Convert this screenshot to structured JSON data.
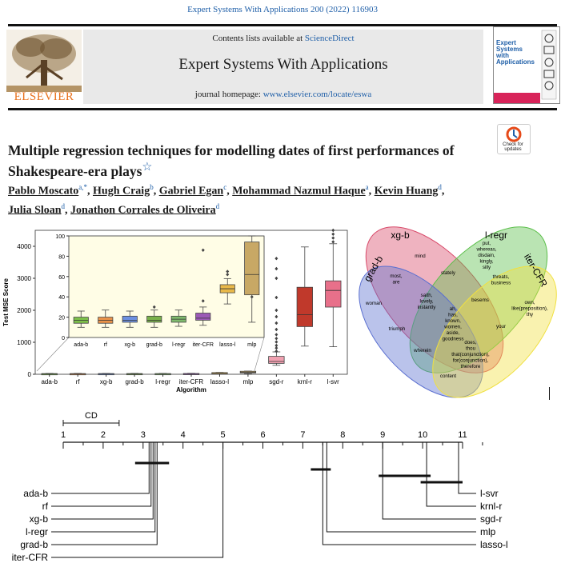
{
  "header": {
    "citation": "Expert Systems With Applications 200 (2022) 116903",
    "contents_prefix": "Contents lists available at",
    "contents_link": "ScienceDirect",
    "journal_title": "Expert Systems With Applications",
    "homepage_prefix": "journal homepage:",
    "homepage_link": "www.elsevier.com/locate/eswa",
    "publisher": "ELSEVIER",
    "cover_title_lines": [
      "Expert",
      "Systems",
      "with",
      "Applications"
    ],
    "check_updates_label": "Check for updates"
  },
  "article": {
    "title": "Multiple regression techniques for modelling dates of first performances of Shakespeare-era plays",
    "title_mark": "☆",
    "authors": [
      {
        "name": "Pablo Moscato",
        "aff": "a,*"
      },
      {
        "name": "Hugh Craig",
        "aff": "b"
      },
      {
        "name": "Gabriel Egan",
        "aff": "c"
      },
      {
        "name": "Mohammad Nazmul Haque",
        "aff": "a"
      },
      {
        "name": "Kevin Huang",
        "aff": "d"
      },
      {
        "name": "Julia Sloan",
        "aff": "d"
      },
      {
        "name": "Jonathon Corrales de Oliveira",
        "aff": "d"
      }
    ]
  },
  "chart_data": [
    {
      "type": "box",
      "xlabel": "Algorithm",
      "ylabel": "Test MSE Score",
      "ylim": [
        0,
        4500
      ],
      "yticks": [
        0,
        1000,
        2000,
        3000,
        4000
      ],
      "categories": [
        "ada-b",
        "rf",
        "xg-b",
        "grad-b",
        "l-regr",
        "iter-CFR",
        "lasso-l",
        "mlp",
        "sgd-r",
        "krnl-r",
        "l-svr"
      ],
      "colors": [
        "#7dbf4a",
        "#e8924a",
        "#6c8fe0",
        "#79b04b",
        "#7fba6d",
        "#9b59b6",
        "#e8b84a",
        "#c8a865",
        "#f0a0b0",
        "#c0392b",
        "#e8708a"
      ],
      "boxes": [
        {
          "min": 10,
          "q1": 14,
          "median": 17,
          "q3": 20,
          "max": 26
        },
        {
          "min": 10,
          "q1": 14,
          "median": 17,
          "q3": 20,
          "max": 27
        },
        {
          "min": 10,
          "q1": 15,
          "median": 17,
          "q3": 21,
          "max": 26
        },
        {
          "min": 10,
          "q1": 15,
          "median": 17,
          "q3": 21,
          "max": 27
        },
        {
          "min": 11,
          "q1": 15,
          "median": 18,
          "q3": 21,
          "max": 27
        },
        {
          "min": 12,
          "q1": 17,
          "median": 19,
          "q3": 24,
          "max": 30
        },
        {
          "min": 33,
          "q1": 44,
          "median": 48,
          "q3": 52,
          "max": 58
        },
        {
          "min": 15,
          "q1": 42,
          "median": 62,
          "q3": 94,
          "max": 100
        },
        {
          "min": 280,
          "q1": 340,
          "median": 400,
          "q3": 560,
          "max": 700
        },
        {
          "min": 880,
          "q1": 1490,
          "median": 1860,
          "q3": 2720,
          "max": 3980
        },
        {
          "min": 860,
          "q1": 2100,
          "median": 2620,
          "q3": 2920,
          "max": 4080
        }
      ],
      "inset": {
        "ylim": [
          0,
          100
        ],
        "yticks": [
          0,
          20,
          40,
          60,
          80,
          100
        ],
        "categories": [
          "ada-b",
          "rf",
          "xg-b",
          "grad-b",
          "l-regr",
          "iter-CFR",
          "lasso-l",
          "mlp"
        ]
      }
    },
    {
      "type": "venn",
      "sets": [
        "xg-b",
        "l-regr",
        "grad-b",
        "iter-CFR"
      ],
      "regions": [
        {
          "words": [
            "mind"
          ]
        },
        {
          "words": [
            "put,",
            "whereas,",
            "disdain,",
            "kingly,",
            "silly"
          ]
        },
        {
          "words": [
            "most,",
            "are"
          ]
        },
        {
          "words": [
            "stately"
          ]
        },
        {
          "words": [
            "threats,",
            "business"
          ]
        },
        {
          "words": [
            "woman"
          ]
        },
        {
          "words": [
            "saith,",
            "lovely,",
            "instantly"
          ]
        },
        {
          "words": [
            "besems"
          ]
        },
        {
          "words": [
            "own,",
            "like(preposition),",
            "thy"
          ]
        },
        {
          "words": [
            "ah,",
            "has,",
            "known,",
            "women,",
            "aside,",
            "goodness"
          ]
        },
        {
          "words": [
            "triumph"
          ]
        },
        {
          "words": [
            "your"
          ]
        },
        {
          "words": [
            "does,",
            "thou",
            "that(conjunction),",
            "for(conjunction),",
            "therefore"
          ]
        },
        {
          "words": [
            "wherein"
          ]
        },
        {
          "words": [
            "content"
          ]
        }
      ]
    },
    {
      "type": "critical-difference",
      "cd_label": "CD",
      "axis_ticks": [
        "1",
        "2",
        "3",
        "4",
        "5",
        "6",
        "7",
        "8",
        "9",
        "10",
        "11"
      ],
      "left_methods": [
        "ada-b",
        "rf",
        "xg-b",
        "l-regr",
        "grad-b",
        "iter-CFR"
      ],
      "left_ranks": [
        3.15,
        3.2,
        3.25,
        3.3,
        3.35,
        5.0
      ],
      "right_methods": [
        "l-svr",
        "krnl-r",
        "sgd-r",
        "mlp",
        "lasso-l"
      ],
      "right_ranks": [
        10.9,
        10.1,
        9.0,
        7.6,
        7.5
      ]
    }
  ]
}
